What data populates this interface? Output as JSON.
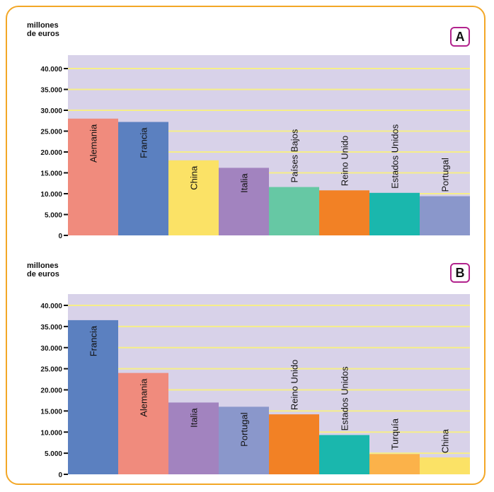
{
  "chart_data": [
    {
      "type": "bar",
      "label": "A",
      "ylabel": "millones\nde euros",
      "ylim": [
        0,
        40000
      ],
      "yticks": [
        "0",
        "5.000",
        "10.000",
        "15.000",
        "20.000",
        "25.000",
        "30.000",
        "35.000",
        "40.000"
      ],
      "grid": true,
      "categories": [
        "Alemania",
        "Francia",
        "China",
        "Italia",
        "Países Bajos",
        "Reino Unido",
        "Estados Unidos",
        "Portugal"
      ],
      "values": [
        28000,
        27200,
        18000,
        16200,
        11600,
        10800,
        10200,
        9400
      ],
      "colors": [
        "#f08b7d",
        "#5b80c0",
        "#fbe266",
        "#a283bf",
        "#66c8a4",
        "#f28125",
        "#1ab7ad",
        "#8a97cb"
      ]
    },
    {
      "type": "bar",
      "label": "B",
      "ylabel": "millones\nde euros",
      "ylim": [
        0,
        40000
      ],
      "yticks": [
        "0",
        "5.000",
        "10.000",
        "15.000",
        "20.000",
        "25.000",
        "30.000",
        "35.000",
        "40.000"
      ],
      "grid": true,
      "categories": [
        "Francia",
        "Alemania",
        "Italia",
        "Portugal",
        "Reino Unido",
        "Estados Unidos",
        "Turquía",
        "China"
      ],
      "values": [
        36500,
        24000,
        17000,
        16000,
        14200,
        9300,
        4800,
        4000
      ],
      "colors": [
        "#5b80c0",
        "#f08b7d",
        "#a283bf",
        "#8a97cb",
        "#f28125",
        "#1ab7ad",
        "#fbb24a",
        "#fbe266"
      ]
    }
  ],
  "style": {
    "plot_bg": "#d8d2e9",
    "grid_color": "#f6ee88",
    "frame_color": "#f3a726",
    "badge_color": "#b2238d"
  }
}
